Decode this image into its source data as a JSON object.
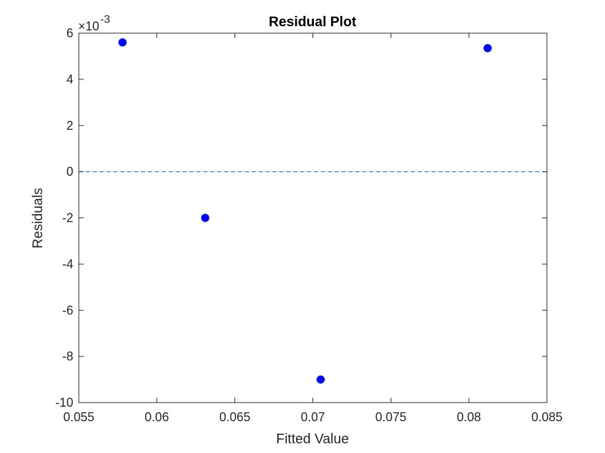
{
  "chart_data": {
    "type": "scatter",
    "title": "Residual Plot",
    "xlabel": "Fitted Value",
    "ylabel": "Residuals",
    "xlim": [
      0.055,
      0.085
    ],
    "ylim": [
      -10,
      6
    ],
    "y_scale_exponent_label": "×10",
    "y_scale_exponent": "-3",
    "x_ticks": [
      "0.055",
      "0.06",
      "0.065",
      "0.07",
      "0.075",
      "0.08",
      "0.085"
    ],
    "y_ticks": [
      "-10",
      "-8",
      "-6",
      "-4",
      "-2",
      "0",
      "2",
      "4",
      "6"
    ],
    "points": [
      {
        "x": 0.0578,
        "y": 5.6
      },
      {
        "x": 0.0631,
        "y": -2.0
      },
      {
        "x": 0.0705,
        "y": -9.0
      },
      {
        "x": 0.0812,
        "y": 5.35
      }
    ],
    "reference_line": {
      "y": 0,
      "style": "dashed"
    },
    "grid": false,
    "colors": {
      "marker": "#0000ff",
      "reference_line": "#2f7fd0",
      "axes": "#262626"
    }
  }
}
